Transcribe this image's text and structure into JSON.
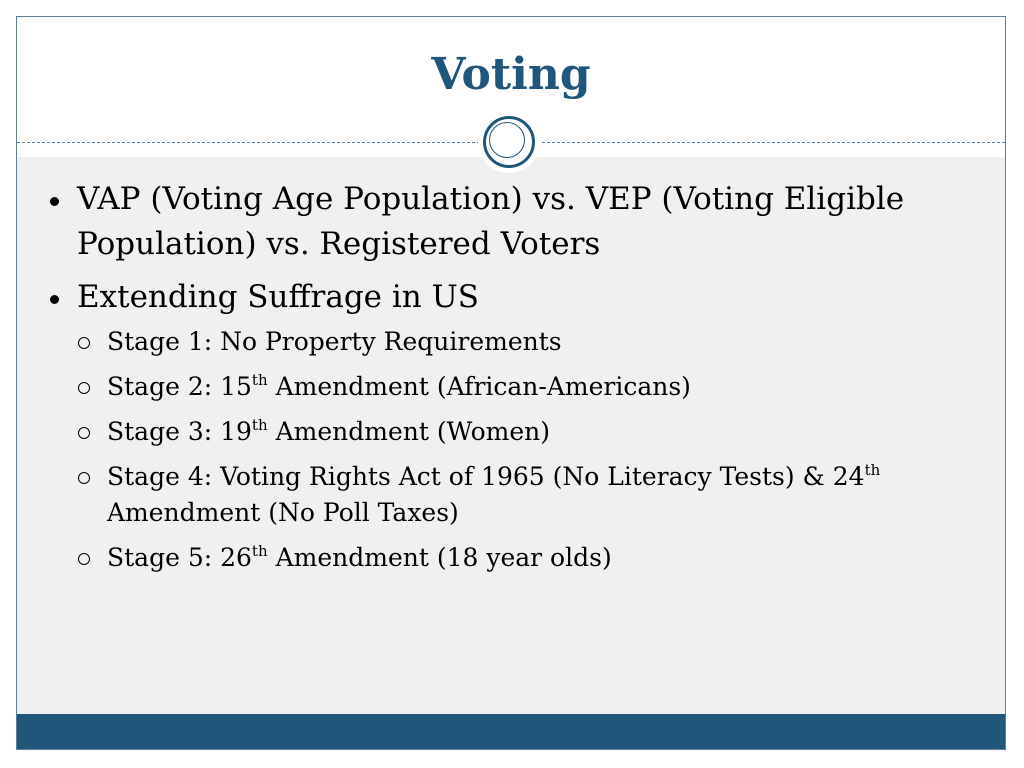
{
  "slide": {
    "title": "Voting",
    "bullets": [
      {
        "text": "VAP (Voting Age Population) vs. VEP (Voting Eligible Population) vs. Registered Voters"
      },
      {
        "text": "Extending Suffrage in US"
      }
    ],
    "sub_bullets": [
      {
        "before": "Stage 1: No Property Requirements",
        "sup": "",
        "after": ""
      },
      {
        "before": "Stage 2: 15",
        "sup": "th",
        "after": " Amendment (African-Americans)"
      },
      {
        "before": "Stage 3: 19",
        "sup": "th",
        "after": " Amendment (Women)"
      },
      {
        "before": "Stage 4: Voting Rights Act of 1965 (No Literacy Tests) & 24",
        "sup": "th",
        "after": " Amendment (No Poll Taxes)"
      },
      {
        "before": "Stage 5: 26",
        "sup": "th",
        "after": " Amendment (18 year olds)"
      }
    ]
  },
  "colors": {
    "accent": "#1f5679",
    "content_background": "#f0f0f0",
    "border": "#5d7f99"
  },
  "icons": {
    "title_emblem": "double-circle-icon",
    "bullet": "filled-dot-icon",
    "sub_bullet": "hollow-circle-icon"
  }
}
